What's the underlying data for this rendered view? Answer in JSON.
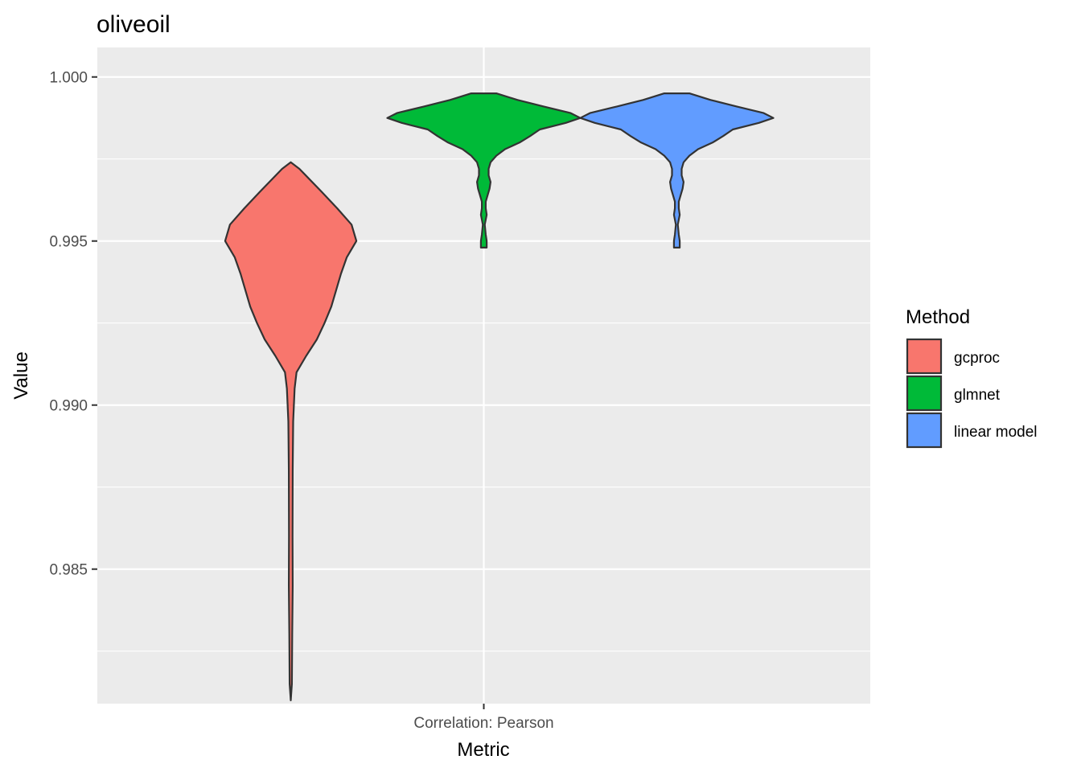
{
  "chart_data": {
    "type": "violin",
    "title": "oliveoil",
    "xlabel": "Metric",
    "ylabel": "Value",
    "categories": [
      "Correlation: Pearson"
    ],
    "ylim": [
      0.9809,
      1.0009
    ],
    "y_ticks": [
      0.985,
      0.99,
      0.995,
      1.0
    ],
    "y_tick_labels": [
      "0.985",
      "0.990",
      "0.995",
      "1.000"
    ],
    "grid": true,
    "legend": {
      "title": "Method",
      "position": "right"
    },
    "series": [
      {
        "name": "gcproc",
        "color": "#F8766D",
        "min": 0.981,
        "max": 0.9974,
        "density": [
          [
            0.9974,
            0.0
          ],
          [
            0.9972,
            0.09
          ],
          [
            0.9965,
            0.32
          ],
          [
            0.996,
            0.48
          ],
          [
            0.9955,
            0.63
          ],
          [
            0.995,
            0.68
          ],
          [
            0.9945,
            0.58
          ],
          [
            0.994,
            0.52
          ],
          [
            0.9935,
            0.47
          ],
          [
            0.993,
            0.42
          ],
          [
            0.9925,
            0.35
          ],
          [
            0.992,
            0.27
          ],
          [
            0.9915,
            0.16
          ],
          [
            0.991,
            0.06
          ],
          [
            0.9905,
            0.04
          ],
          [
            0.9895,
            0.025
          ],
          [
            0.988,
            0.02
          ],
          [
            0.986,
            0.018
          ],
          [
            0.9845,
            0.02
          ],
          [
            0.983,
            0.015
          ],
          [
            0.9815,
            0.012
          ],
          [
            0.981,
            0.0
          ]
        ]
      },
      {
        "name": "glmnet",
        "color": "#00BA38",
        "min": 0.9948,
        "max": 0.9995,
        "density": [
          [
            0.9995,
            0.13
          ],
          [
            0.9993,
            0.35
          ],
          [
            0.9991,
            0.62
          ],
          [
            0.9989,
            0.9
          ],
          [
            0.99875,
            1.0
          ],
          [
            0.9986,
            0.85
          ],
          [
            0.9984,
            0.58
          ],
          [
            0.9982,
            0.48
          ],
          [
            0.998,
            0.37
          ],
          [
            0.9978,
            0.22
          ],
          [
            0.9976,
            0.13
          ],
          [
            0.9974,
            0.07
          ],
          [
            0.9972,
            0.05
          ],
          [
            0.997,
            0.05
          ],
          [
            0.9968,
            0.07
          ],
          [
            0.9966,
            0.06
          ],
          [
            0.9964,
            0.04
          ],
          [
            0.9962,
            0.02
          ],
          [
            0.996,
            0.02
          ],
          [
            0.9958,
            0.03
          ],
          [
            0.9955,
            0.01
          ],
          [
            0.9952,
            0.02
          ],
          [
            0.995,
            0.03
          ],
          [
            0.9948,
            0.03
          ]
        ]
      },
      {
        "name": "linear model",
        "color": "#619CFF",
        "min": 0.9948,
        "max": 0.9995,
        "density": [
          [
            0.9995,
            0.13
          ],
          [
            0.9993,
            0.35
          ],
          [
            0.9991,
            0.62
          ],
          [
            0.9989,
            0.9
          ],
          [
            0.99875,
            1.0
          ],
          [
            0.9986,
            0.85
          ],
          [
            0.9984,
            0.58
          ],
          [
            0.9982,
            0.48
          ],
          [
            0.998,
            0.37
          ],
          [
            0.9978,
            0.22
          ],
          [
            0.9976,
            0.13
          ],
          [
            0.9974,
            0.07
          ],
          [
            0.9972,
            0.05
          ],
          [
            0.997,
            0.05
          ],
          [
            0.9968,
            0.07
          ],
          [
            0.9966,
            0.06
          ],
          [
            0.9964,
            0.04
          ],
          [
            0.9962,
            0.02
          ],
          [
            0.996,
            0.02
          ],
          [
            0.9958,
            0.03
          ],
          [
            0.9955,
            0.01
          ],
          [
            0.9952,
            0.02
          ],
          [
            0.995,
            0.03
          ],
          [
            0.9948,
            0.03
          ]
        ]
      }
    ]
  }
}
